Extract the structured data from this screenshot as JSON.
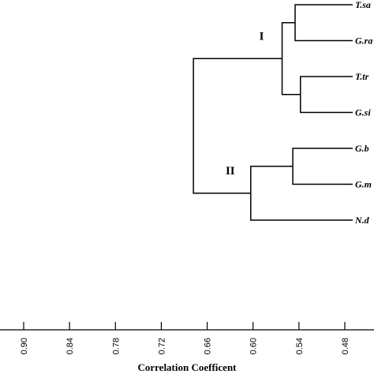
{
  "chart_data": {
    "type": "dendrogram",
    "xlabel": "Correlation Coefficent",
    "x_reversed": true,
    "xlim": [
      0.92,
      0.46
    ],
    "ticks": [
      "0.90",
      "0.84",
      "0.78",
      "0.72",
      "0.66",
      "0.60",
      "0.54",
      "0.48"
    ],
    "leaves": [
      "T.sa",
      "G.ra",
      "T.tr",
      "G.si",
      "G.b",
      "G.m",
      "N.d"
    ],
    "merges": [
      {
        "left": "T.sa",
        "right": "G.ra",
        "height": 0.545
      },
      {
        "left": "T.tr",
        "right": "G.si",
        "height": 0.538
      },
      {
        "left": "T.sa+G.ra",
        "right": "T.tr+G.si",
        "height": 0.562
      },
      {
        "left": "G.b",
        "right": "G.m",
        "height": 0.548
      },
      {
        "left": "G.b+G.m",
        "right": "N.d",
        "height": 0.603
      },
      {
        "left": "T.sa+G.ra+T.tr+G.si",
        "right": "G.b+G.m+N.d",
        "height": 0.678
      }
    ],
    "clusters": [
      {
        "label": "I",
        "height": 0.562
      },
      {
        "label": "II",
        "height": 0.603
      }
    ]
  }
}
